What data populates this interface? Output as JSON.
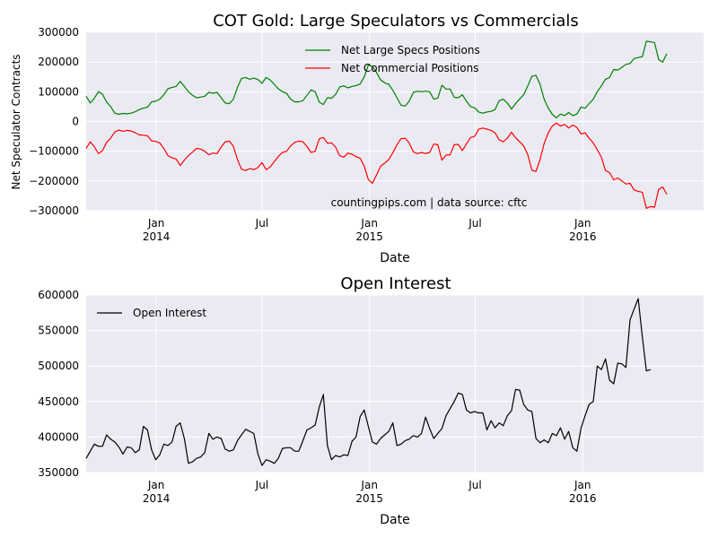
{
  "chart_data": [
    {
      "type": "line",
      "title": "COT Gold: Large Speculators vs Commercials",
      "xlabel": "Date",
      "ylabel": "Net Speculator Contracts",
      "annotation": "countingpips.com | data source: cftc",
      "ylim": [
        -300000,
        300000
      ],
      "yticks": [
        -300000,
        -200000,
        -100000,
        0,
        100000,
        200000,
        300000
      ],
      "ytick_labels": [
        "−300000",
        "−200000",
        "−100000",
        "0",
        "100000",
        "200000",
        "300000"
      ],
      "xlim": [
        "2013-09-03",
        "2016-07-26"
      ],
      "xticks": [
        {
          "date": "2014-01-01",
          "line1": "Jan",
          "line2": "2014"
        },
        {
          "date": "2014-07-01",
          "line1": "Jul",
          "line2": ""
        },
        {
          "date": "2015-01-01",
          "line1": "Jan",
          "line2": "2015"
        },
        {
          "date": "2015-07-01",
          "line1": "Jul",
          "line2": ""
        },
        {
          "date": "2016-01-01",
          "line1": "Jan",
          "line2": "2016"
        }
      ],
      "grid": true,
      "legend_position": "top-center",
      "start_date": "2013-09-03",
      "interval_days": 7,
      "series": [
        {
          "name": "Net Large Specs Positions",
          "color": "#008000",
          "values": [
            85000,
            62000,
            78000,
            100000,
            92000,
            65000,
            50000,
            28000,
            24000,
            27000,
            26000,
            28000,
            33000,
            40000,
            45000,
            48000,
            66000,
            68000,
            75000,
            90000,
            110000,
            115000,
            118000,
            135000,
            118000,
            100000,
            88000,
            80000,
            82000,
            85000,
            98000,
            95000,
            98000,
            80000,
            62000,
            60000,
            75000,
            115000,
            145000,
            148000,
            142000,
            146000,
            141000,
            128000,
            148000,
            140000,
            125000,
            110000,
            100000,
            95000,
            75000,
            66000,
            66000,
            70000,
            88000,
            106000,
            100000,
            65000,
            57000,
            80000,
            78000,
            91000,
            116000,
            120000,
            113000,
            118000,
            121000,
            126000,
            150000,
            190000,
            185000,
            165000,
            140000,
            130000,
            125000,
            105000,
            80000,
            55000,
            52000,
            68000,
            98000,
            102000,
            100000,
            102000,
            100000,
            75000,
            78000,
            122000,
            109000,
            109000,
            81000,
            80000,
            90000,
            68000,
            50000,
            46000,
            32000,
            28000,
            32000,
            34000,
            40000,
            70000,
            75000,
            62000,
            42000,
            60000,
            76000,
            90000,
            120000,
            152000,
            155000,
            125000,
            75000,
            45000,
            24000,
            12000,
            25000,
            20000,
            30000,
            20000,
            25000,
            48000,
            45000,
            60000,
            75000,
            100000,
            120000,
            142000,
            148000,
            175000,
            173000,
            182000,
            192000,
            195000,
            212000,
            215000,
            218000,
            270000,
            268000,
            265000,
            208000,
            200000,
            228000
          ]
        },
        {
          "name": "Net Commercial Positions",
          "color": "#ff0000",
          "values": [
            -90000,
            -68000,
            -85000,
            -108000,
            -98000,
            -70000,
            -56000,
            -35000,
            -29000,
            -33000,
            -30000,
            -32000,
            -38000,
            -45000,
            -46000,
            -48000,
            -65000,
            -67000,
            -72000,
            -91000,
            -115000,
            -122000,
            -126000,
            -148000,
            -130000,
            -115000,
            -103000,
            -90000,
            -93000,
            -100000,
            -112000,
            -106000,
            -108000,
            -86000,
            -68000,
            -66000,
            -83000,
            -128000,
            -160000,
            -165000,
            -158000,
            -162000,
            -155000,
            -138000,
            -162000,
            -153000,
            -135000,
            -118000,
            -104000,
            -100000,
            -82000,
            -70000,
            -66000,
            -68000,
            -84000,
            -104000,
            -100000,
            -58000,
            -54000,
            -73000,
            -72000,
            -86000,
            -115000,
            -120000,
            -106000,
            -110000,
            -118000,
            -124000,
            -150000,
            -195000,
            -208000,
            -180000,
            -150000,
            -140000,
            -128000,
            -105000,
            -78000,
            -58000,
            -56000,
            -72000,
            -102000,
            -108000,
            -104000,
            -108000,
            -104000,
            -76000,
            -78000,
            -130000,
            -113000,
            -112000,
            -78000,
            -77000,
            -98000,
            -75000,
            -54000,
            -50000,
            -26000,
            -22000,
            -26000,
            -30000,
            -38000,
            -62000,
            -68000,
            -56000,
            -36000,
            -54000,
            -68000,
            -82000,
            -112000,
            -164000,
            -168000,
            -128000,
            -74000,
            -38000,
            -15000,
            -5000,
            -15000,
            -10000,
            -22000,
            -12000,
            -20000,
            -42000,
            -38000,
            -56000,
            -72000,
            -95000,
            -120000,
            -165000,
            -172000,
            -196000,
            -190000,
            -200000,
            -210000,
            -208000,
            -230000,
            -235000,
            -238000,
            -292000,
            -286000,
            -288000,
            -228000,
            -220000,
            -245000
          ]
        }
      ]
    },
    {
      "type": "line",
      "title": "Open Interest",
      "xlabel": "Date",
      "ylabel": "",
      "ylim": [
        350000,
        600000
      ],
      "yticks": [
        350000,
        400000,
        450000,
        500000,
        550000,
        600000
      ],
      "ytick_labels": [
        "350000",
        "400000",
        "450000",
        "500000",
        "550000",
        "600000"
      ],
      "xlim": [
        "2013-09-03",
        "2016-07-26"
      ],
      "xticks": [
        {
          "date": "2014-01-01",
          "line1": "Jan",
          "line2": "2014"
        },
        {
          "date": "2014-07-01",
          "line1": "Jul",
          "line2": ""
        },
        {
          "date": "2015-01-01",
          "line1": "Jan",
          "line2": "2015"
        },
        {
          "date": "2015-07-01",
          "line1": "Jul",
          "line2": ""
        },
        {
          "date": "2016-01-01",
          "line1": "Jan",
          "line2": "2016"
        }
      ],
      "grid": true,
      "legend_position": "top-left",
      "start_date": "2013-09-03",
      "interval_days": 7,
      "series": [
        {
          "name": "Open Interest",
          "color": "#000000",
          "values": [
            370000,
            380000,
            390000,
            387000,
            387000,
            403000,
            397000,
            393000,
            386000,
            376000,
            386000,
            385000,
            378000,
            382000,
            415000,
            410000,
            382000,
            368000,
            375000,
            390000,
            388000,
            393000,
            415000,
            420000,
            398000,
            363000,
            365000,
            370000,
            372000,
            378000,
            405000,
            397000,
            400000,
            398000,
            383000,
            380000,
            382000,
            395000,
            403000,
            411000,
            408000,
            405000,
            376000,
            360000,
            368000,
            366000,
            363000,
            370000,
            384000,
            385000,
            385000,
            380000,
            380000,
            395000,
            410000,
            413000,
            417000,
            442000,
            460000,
            388000,
            368000,
            374000,
            372000,
            375000,
            374000,
            394000,
            400000,
            429000,
            438000,
            415000,
            393000,
            390000,
            398000,
            403000,
            408000,
            420000,
            388000,
            390000,
            395000,
            397000,
            402000,
            400000,
            405000,
            428000,
            412000,
            398000,
            405000,
            412000,
            430000,
            440000,
            450000,
            462000,
            460000,
            438000,
            434000,
            436000,
            434000,
            434000,
            410000,
            423000,
            413000,
            420000,
            416000,
            430000,
            437000,
            467000,
            466000,
            446000,
            438000,
            436000,
            398000,
            392000,
            396000,
            392000,
            405000,
            402000,
            413000,
            397000,
            408000,
            385000,
            380000,
            412000,
            430000,
            446000,
            450000,
            500000,
            495000,
            510000,
            480000,
            475000,
            504000,
            503000,
            498000,
            565000,
            580000,
            595000,
            541000,
            493000,
            495000
          ]
        }
      ]
    }
  ]
}
